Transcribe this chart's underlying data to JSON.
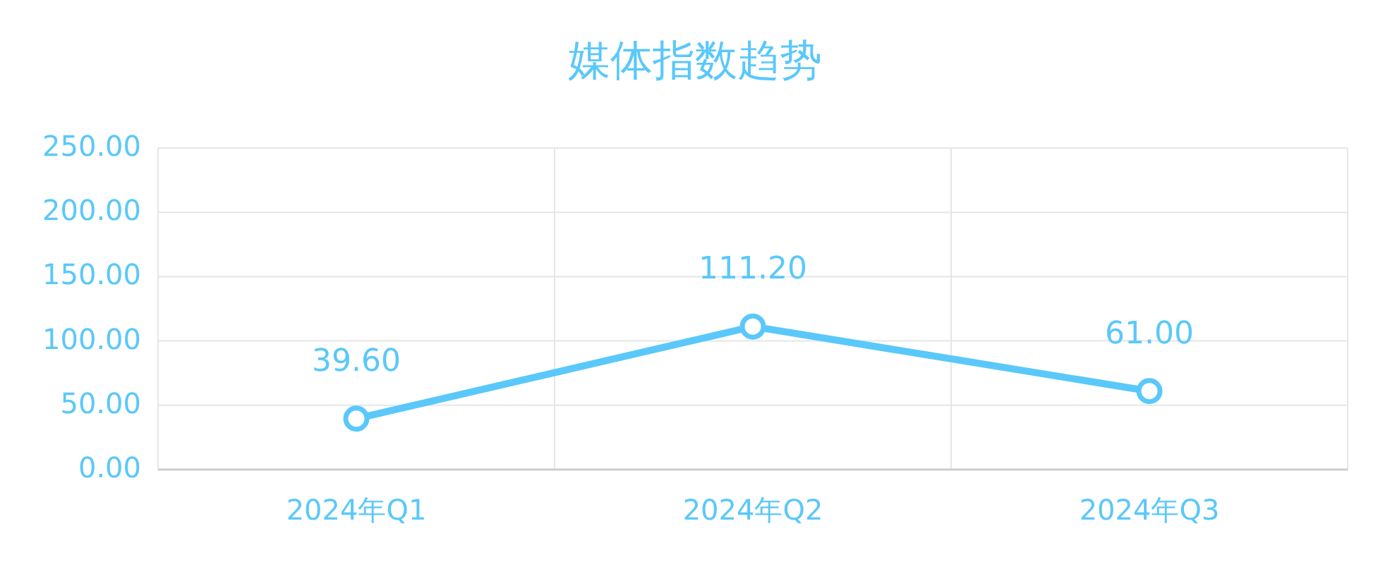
{
  "chart_data": {
    "type": "line",
    "title": "媒体指数趋势",
    "categories": [
      "2024年Q1",
      "2024年Q2",
      "2024年Q3"
    ],
    "series": [
      {
        "color": "#5ac8fa",
        "values": [
          39.6,
          111.2,
          61.0
        ],
        "value_labels": [
          "39.60",
          "111.20",
          "61.00"
        ]
      }
    ],
    "ylim": [
      0,
      250
    ],
    "yticks": [
      {
        "value": 0,
        "label": "0.00"
      },
      {
        "value": 50,
        "label": "50.00"
      },
      {
        "value": 100,
        "label": "100.00"
      },
      {
        "value": 150,
        "label": "150.00"
      },
      {
        "value": 200,
        "label": "200.00"
      },
      {
        "value": 250,
        "label": "250.00"
      }
    ],
    "grid": true,
    "marker": "circle",
    "line_style": "solid"
  }
}
